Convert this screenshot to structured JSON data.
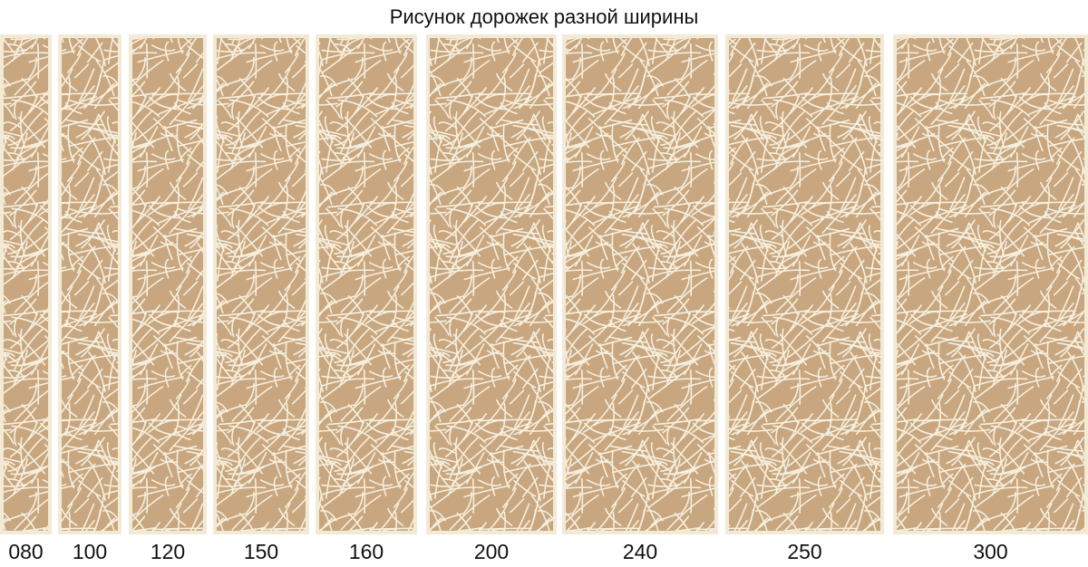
{
  "title": "Рисунок дорожек разной ширины",
  "strips": [
    {
      "label": "080"
    },
    {
      "label": "100"
    },
    {
      "label": "120"
    },
    {
      "label": "150"
    },
    {
      "label": "160"
    },
    {
      "label": "200"
    },
    {
      "label": "240"
    },
    {
      "label": "250"
    },
    {
      "label": "300"
    }
  ]
}
